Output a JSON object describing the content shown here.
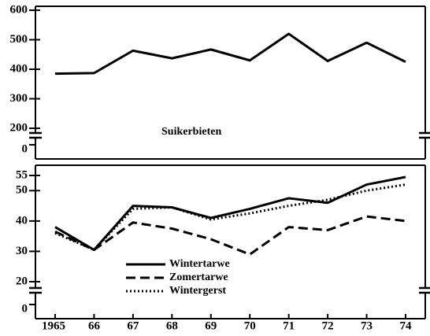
{
  "chart_data": [
    {
      "type": "line",
      "title": "Suikerbieten",
      "color": "#000000",
      "values": [
        385,
        387,
        463,
        437,
        467,
        430,
        520,
        428,
        490,
        425
      ],
      "ylim": [
        200,
        600
      ],
      "yticks": [
        200,
        300,
        400,
        500,
        600
      ],
      "break_tick": 0
    },
    {
      "type": "line",
      "categories": [
        "1965",
        "66",
        "67",
        "68",
        "69",
        "70",
        "71",
        "72",
        "73",
        "74"
      ],
      "series": [
        {
          "name": "Wintertarwe",
          "color": "#000000",
          "style": "solid",
          "values": [
            38,
            30.5,
            45,
            44.5,
            41,
            44,
            47.5,
            46,
            52,
            54.5
          ]
        },
        {
          "name": "Zomertarwe",
          "color": "#000000",
          "style": "dashed",
          "values": [
            36.5,
            30.5,
            39.5,
            37.5,
            34,
            29,
            38,
            37,
            41.5,
            40
          ]
        },
        {
          "name": "Wintergerst",
          "color": "#000000",
          "style": "dotted",
          "values": [
            36,
            30.5,
            44,
            44.5,
            40.5,
            42.5,
            45,
            47,
            50,
            52
          ]
        }
      ],
      "ylim": [
        20,
        55
      ],
      "yticks": [
        20,
        30,
        40,
        50,
        55
      ],
      "break_tick": 0,
      "legend": "lower left"
    }
  ]
}
